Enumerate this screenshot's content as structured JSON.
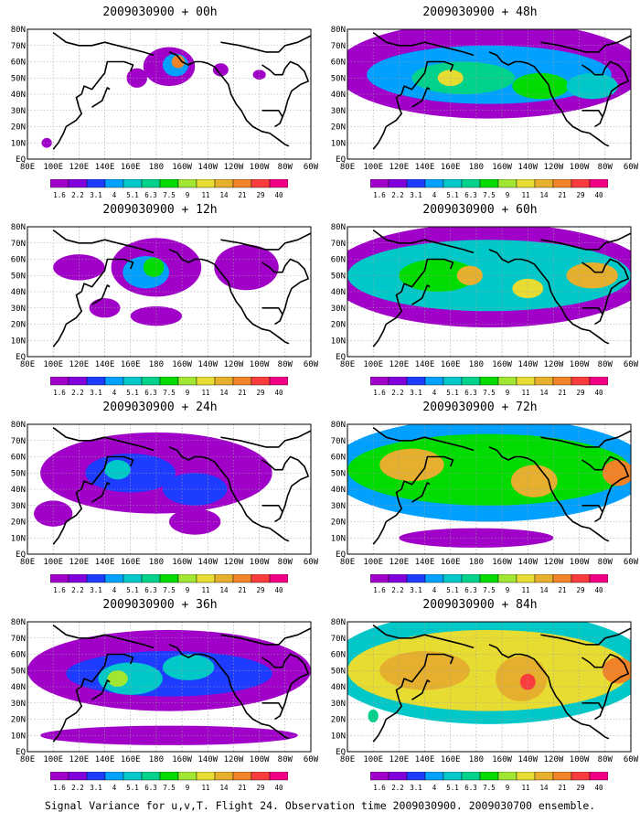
{
  "caption": "Signal Variance for u,v,T. Flight 24. Observation time 2009030900. 2009030700 ensemble.",
  "colors": {
    "levels": [
      "#a000c8",
      "#8200dc",
      "#1e3cff",
      "#00a0ff",
      "#00c8c8",
      "#00d28c",
      "#00dc00",
      "#a0e632",
      "#e6dc32",
      "#e6af2d",
      "#f08228",
      "#fa3c3c",
      "#f00082"
    ],
    "land_outline": "#000000",
    "grid": "#a0a0a0"
  },
  "chart_data": [
    {
      "type": "heatmap",
      "title": "2009030900 + 00h",
      "forecast_hour": 0,
      "x_tick_labels": [
        "80E",
        "100E",
        "120E",
        "140E",
        "160E",
        "180",
        "160W",
        "140W",
        "120W",
        "100W",
        "80W",
        "60W"
      ],
      "y_tick_labels": [
        "EQ",
        "10N",
        "20N",
        "30N",
        "40N",
        "50N",
        "60N",
        "70N",
        "80N"
      ],
      "xlim": [
        80,
        300
      ],
      "ylim": [
        0,
        80
      ],
      "grid": true,
      "colorbar_levels": [
        "1.6",
        "2.2",
        "3.1",
        "4",
        "5.1",
        "6.3",
        "7.5",
        "9",
        "11",
        "14",
        "21",
        "29",
        "40"
      ],
      "blobs": [
        {
          "lon": 190,
          "lat": 57,
          "rlon": 20,
          "rlat": 12,
          "level": 0
        },
        {
          "lon": 195,
          "lat": 58,
          "rlon": 10,
          "rlat": 7,
          "level": 3
        },
        {
          "lon": 197,
          "lat": 60,
          "rlon": 5,
          "rlat": 4,
          "level": 10
        },
        {
          "lon": 165,
          "lat": 50,
          "rlon": 8,
          "rlat": 6,
          "level": 0
        },
        {
          "lon": 230,
          "lat": 55,
          "rlon": 6,
          "rlat": 4,
          "level": 0
        },
        {
          "lon": 260,
          "lat": 52,
          "rlon": 5,
          "rlat": 3,
          "level": 0
        },
        {
          "lon": 95,
          "lat": 10,
          "rlon": 4,
          "rlat": 3,
          "level": 0
        }
      ]
    },
    {
      "type": "heatmap",
      "title": "2009030900 + 12h",
      "forecast_hour": 12,
      "x_tick_labels": [
        "80E",
        "100E",
        "120E",
        "140E",
        "160E",
        "180",
        "160W",
        "140W",
        "120W",
        "100W",
        "80W",
        "60W"
      ],
      "y_tick_labels": [
        "EQ",
        "10N",
        "20N",
        "30N",
        "40N",
        "50N",
        "60N",
        "70N",
        "80N"
      ],
      "xlim": [
        80,
        300
      ],
      "ylim": [
        0,
        80
      ],
      "grid": true,
      "colorbar_levels": [
        "1.6",
        "2.2",
        "3.1",
        "4",
        "5.1",
        "6.3",
        "7.5",
        "9",
        "11",
        "14",
        "21",
        "29",
        "40"
      ],
      "blobs": [
        {
          "lon": 180,
          "lat": 55,
          "rlon": 35,
          "rlat": 18,
          "level": 0
        },
        {
          "lon": 172,
          "lat": 52,
          "rlon": 18,
          "rlat": 10,
          "level": 3
        },
        {
          "lon": 178,
          "lat": 55,
          "rlon": 8,
          "rlat": 6,
          "level": 6
        },
        {
          "lon": 250,
          "lat": 55,
          "rlon": 25,
          "rlat": 14,
          "level": 0
        },
        {
          "lon": 140,
          "lat": 30,
          "rlon": 12,
          "rlat": 6,
          "level": 0
        },
        {
          "lon": 180,
          "lat": 25,
          "rlon": 20,
          "rlat": 6,
          "level": 0
        },
        {
          "lon": 120,
          "lat": 55,
          "rlon": 20,
          "rlat": 8,
          "level": 0
        }
      ]
    },
    {
      "type": "heatmap",
      "title": "2009030900 + 24h",
      "forecast_hour": 24,
      "x_tick_labels": [
        "80E",
        "100E",
        "120E",
        "140E",
        "160E",
        "180",
        "160W",
        "140W",
        "120W",
        "100W",
        "80W",
        "60W"
      ],
      "y_tick_labels": [
        "EQ",
        "10N",
        "20N",
        "30N",
        "40N",
        "50N",
        "60N",
        "70N",
        "80N"
      ],
      "xlim": [
        80,
        300
      ],
      "ylim": [
        0,
        80
      ],
      "grid": true,
      "colorbar_levels": [
        "1.6",
        "2.2",
        "3.1",
        "4",
        "5.1",
        "6.3",
        "7.5",
        "9",
        "11",
        "14",
        "21",
        "29",
        "40"
      ],
      "blobs": [
        {
          "lon": 180,
          "lat": 50,
          "rlon": 90,
          "rlat": 25,
          "level": 0
        },
        {
          "lon": 160,
          "lat": 50,
          "rlon": 35,
          "rlat": 12,
          "level": 2
        },
        {
          "lon": 210,
          "lat": 40,
          "rlon": 25,
          "rlat": 10,
          "level": 2
        },
        {
          "lon": 150,
          "lat": 52,
          "rlon": 10,
          "rlat": 6,
          "level": 4
        },
        {
          "lon": 210,
          "lat": 20,
          "rlon": 20,
          "rlat": 8,
          "level": 0
        },
        {
          "lon": 100,
          "lat": 25,
          "rlon": 15,
          "rlat": 8,
          "level": 0
        }
      ]
    },
    {
      "type": "heatmap",
      "title": "2009030900 + 36h",
      "forecast_hour": 36,
      "x_tick_labels": [
        "80E",
        "100E",
        "120E",
        "140E",
        "160E",
        "180",
        "160W",
        "140W",
        "120W",
        "100W",
        "80W",
        "60W"
      ],
      "y_tick_labels": [
        "EQ",
        "10N",
        "20N",
        "30N",
        "40N",
        "50N",
        "60N",
        "70N",
        "80N"
      ],
      "xlim": [
        80,
        300
      ],
      "ylim": [
        0,
        80
      ],
      "grid": true,
      "colorbar_levels": [
        "1.6",
        "2.2",
        "3.1",
        "4",
        "5.1",
        "6.3",
        "7.5",
        "9",
        "11",
        "14",
        "21",
        "29",
        "40"
      ],
      "blobs": [
        {
          "lon": 190,
          "lat": 50,
          "rlon": 110,
          "rlat": 25,
          "level": 0
        },
        {
          "lon": 190,
          "lat": 48,
          "rlon": 80,
          "rlat": 14,
          "level": 2
        },
        {
          "lon": 160,
          "lat": 45,
          "rlon": 25,
          "rlat": 10,
          "level": 4
        },
        {
          "lon": 205,
          "lat": 52,
          "rlon": 20,
          "rlat": 8,
          "level": 4
        },
        {
          "lon": 150,
          "lat": 45,
          "rlon": 8,
          "rlat": 5,
          "level": 7
        },
        {
          "lon": 190,
          "lat": 10,
          "rlon": 100,
          "rlat": 6,
          "level": 0
        }
      ]
    },
    {
      "type": "heatmap",
      "title": "2009030900 + 48h",
      "forecast_hour": 48,
      "x_tick_labels": [
        "80E",
        "100E",
        "120E",
        "140E",
        "160E",
        "180",
        "160W",
        "140W",
        "120W",
        "100W",
        "80W",
        "60W"
      ],
      "y_tick_labels": [
        "EQ",
        "10N",
        "20N",
        "30N",
        "40N",
        "50N",
        "60N",
        "70N",
        "80N"
      ],
      "xlim": [
        80,
        300
      ],
      "ylim": [
        0,
        80
      ],
      "grid": true,
      "colorbar_levels": [
        "1.6",
        "2.2",
        "3.1",
        "4",
        "5.1",
        "6.3",
        "7.5",
        "9",
        "11",
        "14",
        "21",
        "29",
        "40"
      ],
      "blobs": [
        {
          "lon": 190,
          "lat": 55,
          "rlon": 120,
          "rlat": 30,
          "level": 0
        },
        {
          "lon": 190,
          "lat": 52,
          "rlon": 95,
          "rlat": 18,
          "level": 3
        },
        {
          "lon": 170,
          "lat": 50,
          "rlon": 40,
          "rlat": 10,
          "level": 5
        },
        {
          "lon": 160,
          "lat": 50,
          "rlon": 10,
          "rlat": 5,
          "level": 8
        },
        {
          "lon": 230,
          "lat": 45,
          "rlon": 22,
          "rlat": 8,
          "level": 6
        },
        {
          "lon": 270,
          "lat": 45,
          "rlon": 20,
          "rlat": 8,
          "level": 4
        }
      ]
    },
    {
      "type": "heatmap",
      "title": "2009030900 + 60h",
      "forecast_hour": 60,
      "x_tick_labels": [
        "80E",
        "100E",
        "120E",
        "140E",
        "160E",
        "180",
        "160W",
        "140W",
        "120W",
        "100W",
        "80W",
        "60W"
      ],
      "y_tick_labels": [
        "EQ",
        "10N",
        "20N",
        "30N",
        "40N",
        "50N",
        "60N",
        "70N",
        "80N"
      ],
      "xlim": [
        80,
        300
      ],
      "ylim": [
        0,
        80
      ],
      "grid": true,
      "colorbar_levels": [
        "1.6",
        "2.2",
        "3.1",
        "4",
        "5.1",
        "6.3",
        "7.5",
        "9",
        "11",
        "14",
        "21",
        "29",
        "40"
      ],
      "blobs": [
        {
          "lon": 190,
          "lat": 50,
          "rlon": 125,
          "rlat": 32,
          "level": 0
        },
        {
          "lon": 190,
          "lat": 50,
          "rlon": 110,
          "rlat": 22,
          "level": 4
        },
        {
          "lon": 150,
          "lat": 50,
          "rlon": 30,
          "rlat": 10,
          "level": 6
        },
        {
          "lon": 175,
          "lat": 50,
          "rlon": 10,
          "rlat": 6,
          "level": 9
        },
        {
          "lon": 270,
          "lat": 50,
          "rlon": 20,
          "rlat": 8,
          "level": 9
        },
        {
          "lon": 220,
          "lat": 42,
          "rlon": 12,
          "rlat": 6,
          "level": 8
        }
      ]
    },
    {
      "type": "heatmap",
      "title": "2009030900 + 72h",
      "forecast_hour": 72,
      "x_tick_labels": [
        "80E",
        "100E",
        "120E",
        "140E",
        "160E",
        "180",
        "160W",
        "140W",
        "120W",
        "100W",
        "80W",
        "60W"
      ],
      "y_tick_labels": [
        "EQ",
        "10N",
        "20N",
        "30N",
        "40N",
        "50N",
        "60N",
        "70N",
        "80N"
      ],
      "xlim": [
        80,
        300
      ],
      "ylim": [
        0,
        80
      ],
      "grid": true,
      "colorbar_levels": [
        "1.6",
        "2.2",
        "3.1",
        "4",
        "5.1",
        "6.3",
        "7.5",
        "9",
        "11",
        "14",
        "21",
        "29",
        "40"
      ],
      "blobs": [
        {
          "lon": 190,
          "lat": 52,
          "rlon": 125,
          "rlat": 32,
          "level": 3
        },
        {
          "lon": 190,
          "lat": 52,
          "rlon": 110,
          "rlat": 22,
          "level": 6
        },
        {
          "lon": 130,
          "lat": 55,
          "rlon": 25,
          "rlat": 10,
          "level": 9
        },
        {
          "lon": 225,
          "lat": 45,
          "rlon": 18,
          "rlat": 10,
          "level": 9
        },
        {
          "lon": 290,
          "lat": 50,
          "rlon": 12,
          "rlat": 8,
          "level": 10
        },
        {
          "lon": 180,
          "lat": 10,
          "rlon": 60,
          "rlat": 6,
          "level": 0
        }
      ]
    },
    {
      "type": "heatmap",
      "title": "2009030900 + 84h",
      "forecast_hour": 84,
      "x_tick_labels": [
        "80E",
        "100E",
        "120E",
        "140E",
        "160E",
        "180",
        "160W",
        "140W",
        "120W",
        "100W",
        "80W",
        "60W"
      ],
      "y_tick_labels": [
        "EQ",
        "10N",
        "20N",
        "30N",
        "40N",
        "50N",
        "60N",
        "70N",
        "80N"
      ],
      "xlim": [
        80,
        300
      ],
      "ylim": [
        0,
        80
      ],
      "grid": true,
      "colorbar_levels": [
        "1.6",
        "2.2",
        "3.1",
        "4",
        "5.1",
        "6.3",
        "7.5",
        "9",
        "11",
        "14",
        "21",
        "29",
        "40"
      ],
      "blobs": [
        {
          "lon": 190,
          "lat": 52,
          "rlon": 125,
          "rlat": 35,
          "level": 4
        },
        {
          "lon": 190,
          "lat": 50,
          "rlon": 110,
          "rlat": 25,
          "level": 8
        },
        {
          "lon": 140,
          "lat": 50,
          "rlon": 35,
          "rlat": 12,
          "level": 9
        },
        {
          "lon": 215,
          "lat": 45,
          "rlon": 20,
          "rlat": 14,
          "level": 9
        },
        {
          "lon": 220,
          "lat": 43,
          "rlon": 6,
          "rlat": 5,
          "level": 11
        },
        {
          "lon": 290,
          "lat": 50,
          "rlon": 12,
          "rlat": 8,
          "level": 10
        },
        {
          "lon": 100,
          "lat": 22,
          "rlon": 4,
          "rlat": 4,
          "level": 5
        }
      ]
    }
  ]
}
